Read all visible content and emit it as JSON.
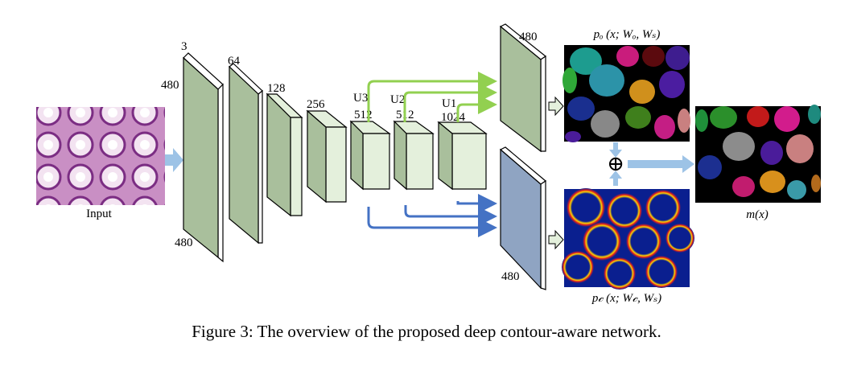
{
  "input_label": "Input",
  "dims": {
    "channels_3": "3",
    "height_480": "480",
    "width_480": "480",
    "channels_64": "64",
    "channels_128": "128",
    "channels_256": "256",
    "u3": "U3",
    "channels_512a": "512",
    "u2": "U2",
    "channels_512b": "512",
    "u1": "U1",
    "channels_1024": "1024",
    "out_top_480": "480",
    "out_bottom_480": "480"
  },
  "outputs": {
    "po": "pₒ (x; Wₒ, Wₛ)",
    "pc": "p𝒸 (x; W𝒸, Wₛ)",
    "mx": "m(x)",
    "fusion_symbol": "⊕"
  },
  "caption": "Figure 3: The overview of the proposed deep contour-aware network.",
  "colors": {
    "input_arrow": "#9dc3e6",
    "conv_front_large": "#a9bf9c",
    "conv_front_small": "#e4f0dc",
    "object_map": "#a9bf9c",
    "contour_map": "#8fa4c2",
    "upsample_green": "#92d050",
    "upsample_blue": "#4472c4",
    "contour_bg": "#0a1f8f"
  }
}
